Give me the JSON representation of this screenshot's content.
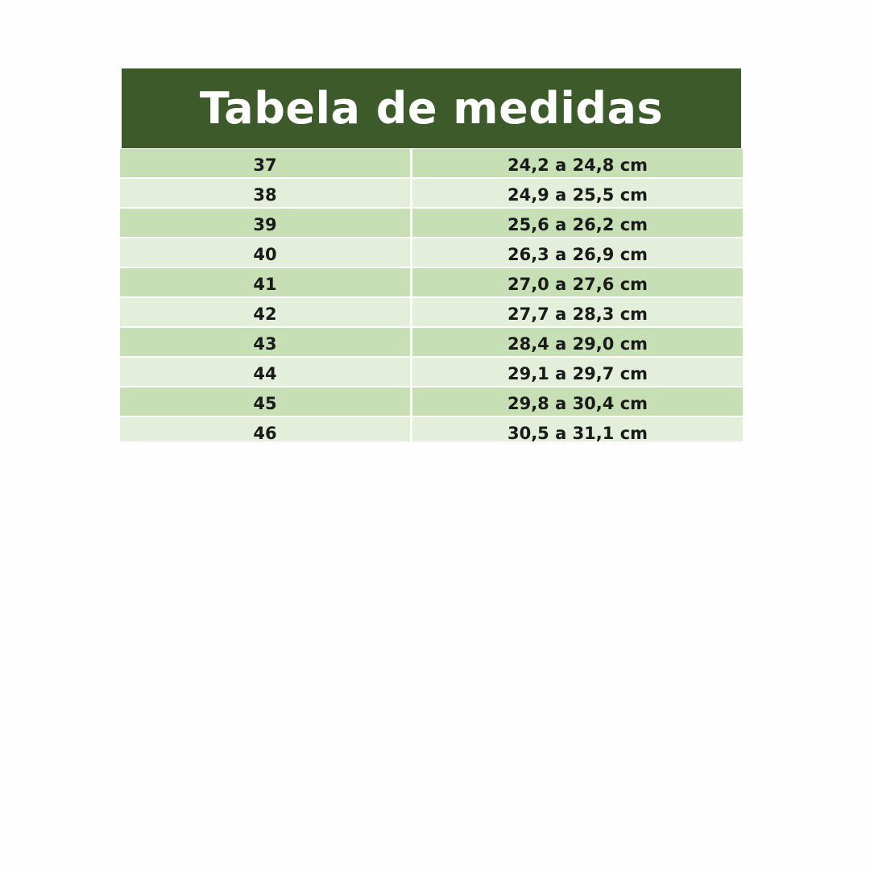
{
  "title": "Tabela de medidas",
  "colors": {
    "header_bg": "#3c5a2a",
    "row_dark": "#c6dfb4",
    "row_light": "#e3efda"
  },
  "rows": [
    {
      "size": "37",
      "measure": "24,2 a 24,8 cm"
    },
    {
      "size": "38",
      "measure": "24,9 a 25,5 cm"
    },
    {
      "size": "39",
      "measure": "25,6 a 26,2 cm"
    },
    {
      "size": "40",
      "measure": "26,3 a 26,9 cm"
    },
    {
      "size": "41",
      "measure": "27,0 a 27,6 cm"
    },
    {
      "size": "42",
      "measure": "27,7 a 28,3 cm"
    },
    {
      "size": "43",
      "measure": "28,4 a 29,0 cm"
    },
    {
      "size": "44",
      "measure": "29,1 a 29,7 cm"
    },
    {
      "size": "45",
      "measure": "29,8 a 30,4 cm"
    },
    {
      "size": "46",
      "measure": "30,5 a 31,1 cm"
    }
  ]
}
